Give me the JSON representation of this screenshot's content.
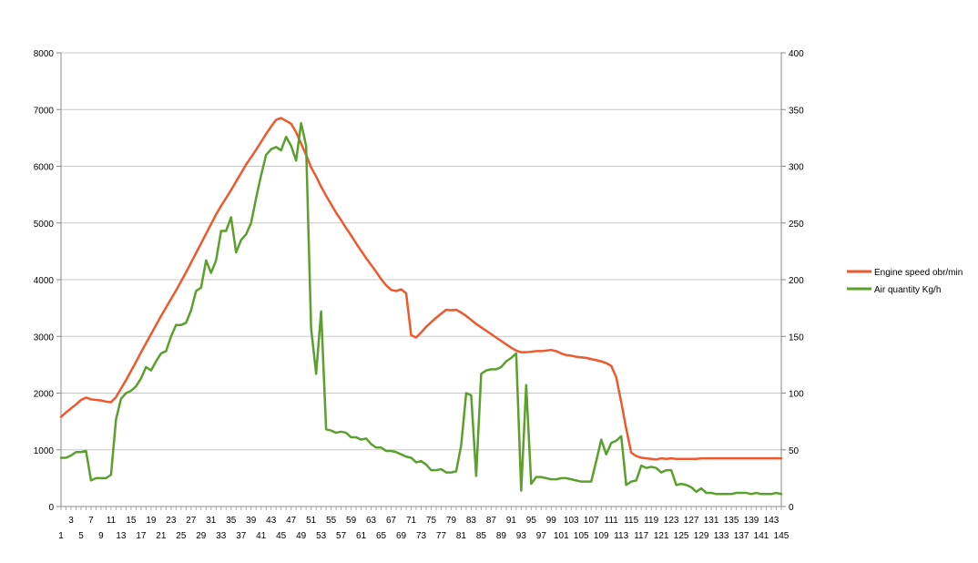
{
  "chart_data": {
    "type": "line",
    "x_ticks_top": [
      "3",
      "7",
      "11",
      "15",
      "19",
      "23",
      "27",
      "31",
      "35",
      "39",
      "43",
      "47",
      "51",
      "55",
      "59",
      "63",
      "67",
      "71",
      "75",
      "79",
      "83",
      "87",
      "91",
      "95",
      "99",
      "103",
      "107",
      "111",
      "115",
      "119",
      "123",
      "127",
      "131",
      "135",
      "139",
      "143"
    ],
    "x_ticks_bottom": [
      "1",
      "5",
      "9",
      "13",
      "17",
      "21",
      "25",
      "29",
      "33",
      "37",
      "41",
      "45",
      "49",
      "53",
      "57",
      "61",
      "65",
      "69",
      "73",
      "77",
      "81",
      "85",
      "89",
      "93",
      "97",
      "101",
      "105",
      "109",
      "113",
      "117",
      "121",
      "125",
      "129",
      "133",
      "137",
      "141",
      "145"
    ],
    "y_left": {
      "min": 0,
      "max": 8000,
      "ticks": [
        "0",
        "1000",
        "2000",
        "3000",
        "4000",
        "5000",
        "6000",
        "7000",
        "8000"
      ]
    },
    "y_right": {
      "min": 0,
      "max": 400,
      "ticks": [
        "0",
        "50",
        "100",
        "150",
        "200",
        "250",
        "300",
        "350",
        "400"
      ]
    },
    "grid": true,
    "legend_position": "right",
    "x": [
      1,
      2,
      3,
      4,
      5,
      6,
      7,
      8,
      9,
      10,
      11,
      12,
      13,
      14,
      15,
      16,
      17,
      18,
      19,
      20,
      21,
      22,
      23,
      24,
      25,
      26,
      27,
      28,
      29,
      30,
      31,
      32,
      33,
      34,
      35,
      36,
      37,
      38,
      39,
      40,
      41,
      42,
      43,
      44,
      45,
      46,
      47,
      48,
      49,
      50,
      51,
      52,
      53,
      54,
      55,
      56,
      57,
      58,
      59,
      60,
      61,
      62,
      63,
      64,
      65,
      66,
      67,
      68,
      69,
      70,
      71,
      72,
      73,
      74,
      75,
      76,
      77,
      78,
      79,
      80,
      81,
      82,
      83,
      84,
      85,
      86,
      87,
      88,
      89,
      90,
      91,
      92,
      93,
      94,
      95,
      96,
      97,
      98,
      99,
      100,
      101,
      102,
      103,
      104,
      105,
      106,
      107,
      108,
      109,
      110,
      111,
      112,
      113,
      114,
      115,
      116,
      117,
      118,
      119,
      120,
      121,
      122,
      123,
      124,
      125,
      126,
      127,
      128,
      129,
      130,
      131,
      132,
      133,
      134,
      135,
      136,
      137,
      138,
      139,
      140,
      141,
      142,
      143,
      144,
      145
    ],
    "series": [
      {
        "name": "Engine speed obr/min",
        "color": "#f0582c",
        "axis": "left",
        "values": [
          1580,
          1660,
          1730,
          1800,
          1880,
          1920,
          1890,
          1880,
          1870,
          1850,
          1840,
          1930,
          2080,
          2230,
          2390,
          2550,
          2720,
          2880,
          3040,
          3200,
          3360,
          3510,
          3660,
          3810,
          3970,
          4130,
          4300,
          4470,
          4640,
          4810,
          4980,
          5150,
          5300,
          5440,
          5580,
          5730,
          5880,
          6030,
          6160,
          6290,
          6430,
          6570,
          6700,
          6820,
          6850,
          6800,
          6750,
          6600,
          6400,
          6200,
          5980,
          5820,
          5640,
          5480,
          5330,
          5180,
          5050,
          4910,
          4780,
          4640,
          4510,
          4380,
          4260,
          4140,
          4010,
          3900,
          3820,
          3800,
          3830,
          3760,
          3020,
          2980,
          3070,
          3170,
          3250,
          3330,
          3400,
          3470,
          3460,
          3470,
          3420,
          3360,
          3290,
          3220,
          3160,
          3100,
          3040,
          2980,
          2920,
          2860,
          2800,
          2750,
          2720,
          2720,
          2730,
          2740,
          2740,
          2750,
          2760,
          2740,
          2700,
          2670,
          2660,
          2640,
          2630,
          2620,
          2600,
          2580,
          2560,
          2530,
          2480,
          2280,
          1840,
          1370,
          950,
          890,
          860,
          850,
          840,
          830,
          850,
          840,
          850,
          840,
          840,
          840,
          840,
          840,
          850,
          850,
          850,
          850,
          850,
          850,
          850,
          850,
          850,
          850,
          850,
          850,
          850,
          850,
          850,
          850,
          850
        ]
      },
      {
        "name": "Air quantity Kg/h",
        "color": "#5aa02c",
        "axis": "right",
        "values": [
          43,
          43,
          45,
          48,
          48,
          49,
          23,
          25,
          25,
          25,
          28,
          77,
          95,
          100,
          102,
          106,
          113,
          123,
          120,
          128,
          135,
          137,
          150,
          160,
          160,
          162,
          173,
          190,
          193,
          217,
          206,
          217,
          243,
          243,
          255,
          224,
          235,
          240,
          250,
          272,
          292,
          310,
          315,
          317,
          314,
          326,
          318,
          305,
          338,
          318,
          157,
          117,
          172,
          68,
          67,
          65,
          66,
          65,
          61,
          61,
          59,
          60,
          55,
          52,
          52,
          49,
          49,
          48,
          46,
          44,
          43,
          39,
          40,
          37,
          32,
          32,
          33,
          30,
          30,
          31,
          54,
          100,
          98,
          27,
          117,
          120,
          121,
          121,
          123,
          128,
          131,
          135,
          14,
          107,
          20,
          26,
          26,
          25,
          24,
          24,
          25,
          25,
          24,
          23,
          22,
          22,
          22,
          40,
          59,
          46,
          56,
          58,
          62,
          19,
          22,
          23,
          36,
          34,
          35,
          34,
          30,
          32,
          32,
          19,
          20,
          19,
          17,
          13,
          16,
          12,
          12,
          11,
          11,
          11,
          11,
          12,
          12,
          12,
          11,
          12,
          11,
          11,
          11,
          12,
          11
        ]
      }
    ]
  }
}
